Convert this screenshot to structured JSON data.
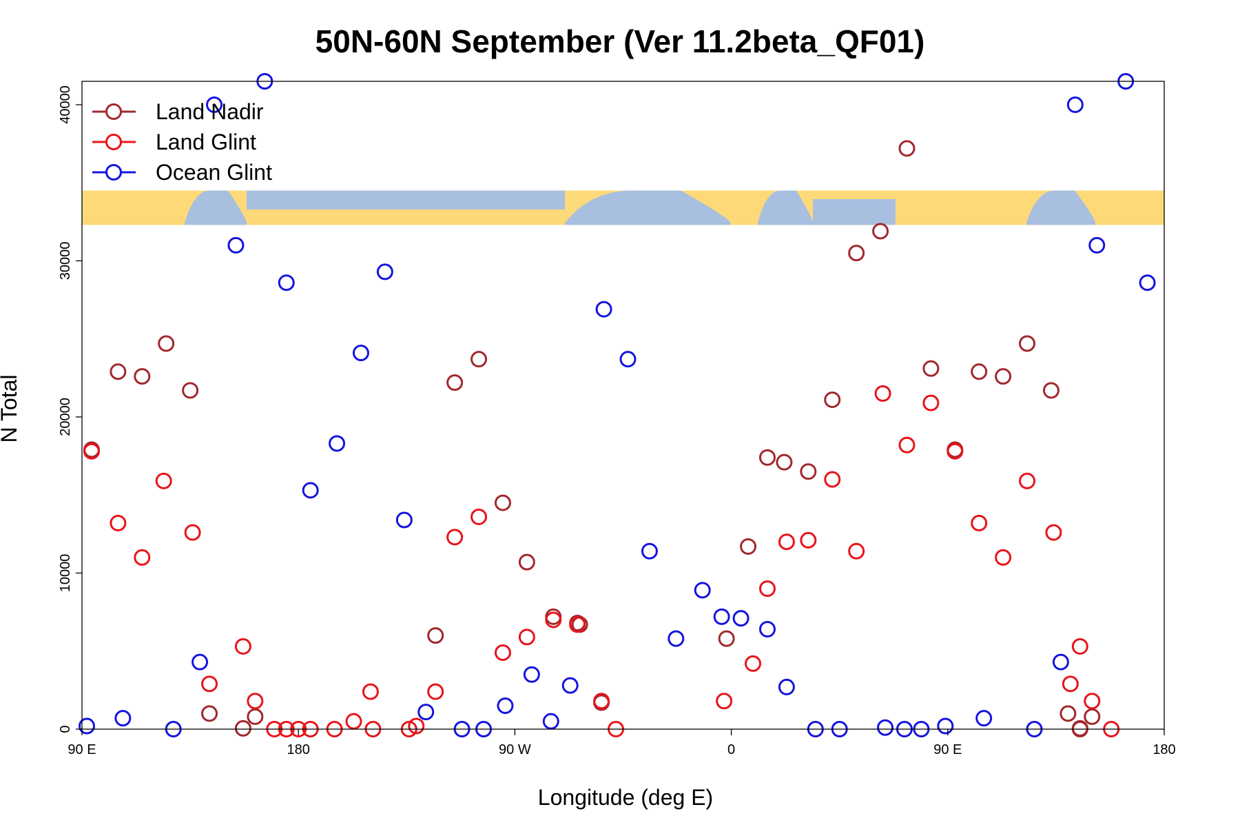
{
  "chart_data": {
    "type": "scatter",
    "title": "50N-60N September (Ver 11.2beta_QF01)",
    "xlabel": "Longitude (deg E)",
    "ylabel": "N Total",
    "xlim": [
      90,
      540
    ],
    "ylim": [
      0,
      41500
    ],
    "x_ticks": [
      {
        "value": 90,
        "label": "90 E"
      },
      {
        "value": 180,
        "label": "180"
      },
      {
        "value": 270,
        "label": "90 W"
      },
      {
        "value": 360,
        "label": "0"
      },
      {
        "value": 450,
        "label": "90 E"
      },
      {
        "value": 540,
        "label": "180"
      }
    ],
    "y_ticks": [
      {
        "value": 0,
        "label": "0"
      },
      {
        "value": 10000,
        "label": "10000"
      },
      {
        "value": 20000,
        "label": "20000"
      },
      {
        "value": 30000,
        "label": "30000"
      },
      {
        "value": 40000,
        "label": "40000"
      }
    ],
    "legend_position": "top-left",
    "map_strip": {
      "y_range": [
        32300,
        34500
      ],
      "land_color": "#fdd978",
      "ocean_color": "#a8bfdf"
    },
    "series": [
      {
        "name": "Land Nadir",
        "color": "#a0282d",
        "points": [
          [
            94,
            17900
          ],
          [
            105,
            22900
          ],
          [
            115,
            22600
          ],
          [
            125,
            24700
          ],
          [
            135,
            21700
          ],
          [
            143,
            1000
          ],
          [
            157,
            50
          ],
          [
            162,
            800
          ],
          [
            237,
            6000
          ],
          [
            245,
            22200
          ],
          [
            255,
            23700
          ],
          [
            265,
            14500
          ],
          [
            275,
            10700
          ],
          [
            286,
            7200
          ],
          [
            296,
            6800
          ],
          [
            297,
            6700
          ],
          [
            306,
            1700
          ],
          [
            358,
            5800
          ],
          [
            367,
            11700
          ],
          [
            375,
            17400
          ],
          [
            382,
            17100
          ],
          [
            392,
            16500
          ],
          [
            402,
            21100
          ],
          [
            412,
            30500
          ],
          [
            422,
            31900
          ],
          [
            433,
            37200
          ],
          [
            443,
            23100
          ],
          [
            453,
            17900
          ],
          [
            463,
            22900
          ],
          [
            473,
            22600
          ],
          [
            483,
            24700
          ],
          [
            493,
            21700
          ],
          [
            500,
            1000
          ],
          [
            505,
            0
          ],
          [
            505,
            50
          ],
          [
            510,
            800
          ]
        ]
      },
      {
        "name": "Land Glint",
        "color": "#e8141a",
        "points": [
          [
            94,
            17800
          ],
          [
            105,
            13200
          ],
          [
            115,
            11000
          ],
          [
            124,
            15900
          ],
          [
            136,
            12600
          ],
          [
            143,
            2900
          ],
          [
            157,
            5300
          ],
          [
            162,
            1800
          ],
          [
            170,
            0
          ],
          [
            175,
            0
          ],
          [
            180,
            0
          ],
          [
            185,
            0
          ],
          [
            195,
            0
          ],
          [
            203,
            500
          ],
          [
            210,
            2400
          ],
          [
            211,
            0
          ],
          [
            226,
            0
          ],
          [
            229,
            200
          ],
          [
            237,
            2400
          ],
          [
            245,
            12300
          ],
          [
            255,
            13600
          ],
          [
            265,
            4900
          ],
          [
            275,
            5900
          ],
          [
            286,
            7000
          ],
          [
            296,
            6700
          ],
          [
            306,
            1800
          ],
          [
            312,
            0
          ],
          [
            357,
            1800
          ],
          [
            369,
            4200
          ],
          [
            375,
            9000
          ],
          [
            383,
            12000
          ],
          [
            392,
            12100
          ],
          [
            402,
            16000
          ],
          [
            412,
            11400
          ],
          [
            423,
            21500
          ],
          [
            433,
            18200
          ],
          [
            443,
            20900
          ],
          [
            453,
            17800
          ],
          [
            463,
            13200
          ],
          [
            473,
            11000
          ],
          [
            483,
            15900
          ],
          [
            494,
            12600
          ],
          [
            501,
            2900
          ],
          [
            505,
            5300
          ],
          [
            510,
            1800
          ],
          [
            518,
            0
          ]
        ]
      },
      {
        "name": "Ocean Glint",
        "color": "#1414e0",
        "points": [
          [
            92,
            200
          ],
          [
            107,
            700
          ],
          [
            128,
            0
          ],
          [
            139,
            4300
          ],
          [
            145,
            40000
          ],
          [
            154,
            31000
          ],
          [
            166,
            41500
          ],
          [
            175,
            28600
          ],
          [
            185,
            15300
          ],
          [
            196,
            18300
          ],
          [
            206,
            24100
          ],
          [
            216,
            29300
          ],
          [
            224,
            13400
          ],
          [
            233,
            1100
          ],
          [
            248,
            0
          ],
          [
            257,
            0
          ],
          [
            266,
            1500
          ],
          [
            277,
            3500
          ],
          [
            285,
            500
          ],
          [
            293,
            2800
          ],
          [
            307,
            26900
          ],
          [
            317,
            23700
          ],
          [
            326,
            11400
          ],
          [
            337,
            5800
          ],
          [
            348,
            8900
          ],
          [
            356,
            7200
          ],
          [
            364,
            7100
          ],
          [
            375,
            6400
          ],
          [
            383,
            2700
          ],
          [
            395,
            0
          ],
          [
            405,
            0
          ],
          [
            424,
            100
          ],
          [
            432,
            0
          ],
          [
            439,
            0
          ],
          [
            449,
            200
          ],
          [
            465,
            700
          ],
          [
            486,
            0
          ],
          [
            497,
            4300
          ],
          [
            503,
            40000
          ],
          [
            512,
            31000
          ],
          [
            524,
            41500
          ],
          [
            533,
            28600
          ]
        ]
      }
    ]
  }
}
